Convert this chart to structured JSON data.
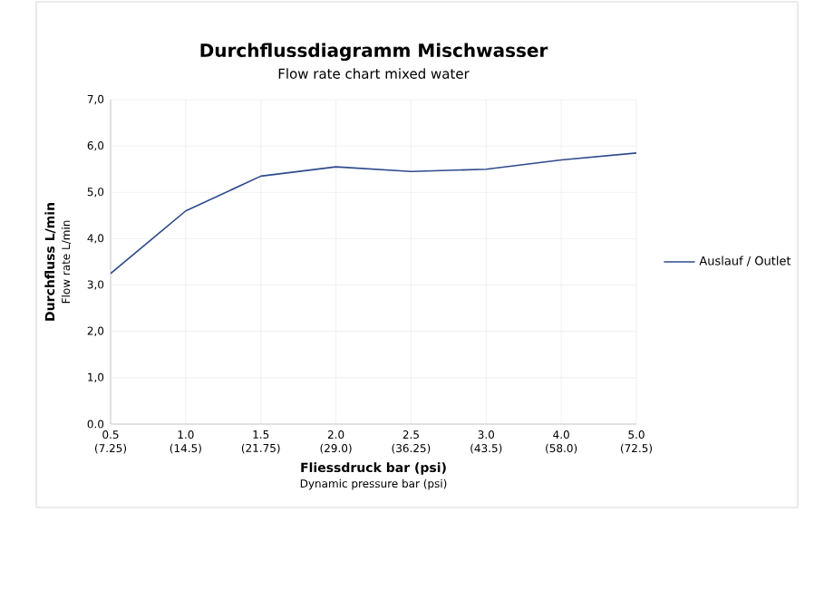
{
  "chart_data": {
    "type": "line",
    "title": "Durchflussdiagramm Mischwasser",
    "subtitle": "Flow rate chart mixed water",
    "xlabel": "Fliessdruck bar (psi)",
    "ylabel": "Durchfluss L/min",
    "annotations": [
      "Flow rate L/min",
      "Dynamic pressure bar (psi)"
    ],
    "categories": [
      "0.5 (7.25)",
      "1.0 (14.5)",
      "1.5 (21.75)",
      "2.0 (29.0)",
      "2.5 (36.25)",
      "3.0 (43.5)",
      "4.0 (58.0)",
      "5.0 (72.5)"
    ],
    "series": [
      {
        "name": "Auslauf / Outlet",
        "color": "#2e4a8c",
        "values": [
          3.25,
          4.6,
          5.35,
          5.55,
          5.45,
          5.5,
          5.7,
          5.85
        ]
      }
    ],
    "ylim": [
      0,
      7
    ],
    "yticks": [
      {
        "value": 0,
        "label": "0.0"
      },
      {
        "value": 1,
        "label": "1,0"
      },
      {
        "value": 2,
        "label": "2,0"
      },
      {
        "value": 3,
        "label": "3,0"
      },
      {
        "value": 4,
        "label": "4,0"
      },
      {
        "value": 5,
        "label": "5,0"
      },
      {
        "value": 6,
        "label": "6,0"
      },
      {
        "value": 7,
        "label": "7,0"
      }
    ],
    "grid": true,
    "legend": "right",
    "marker": "none",
    "line_style": "solid"
  }
}
